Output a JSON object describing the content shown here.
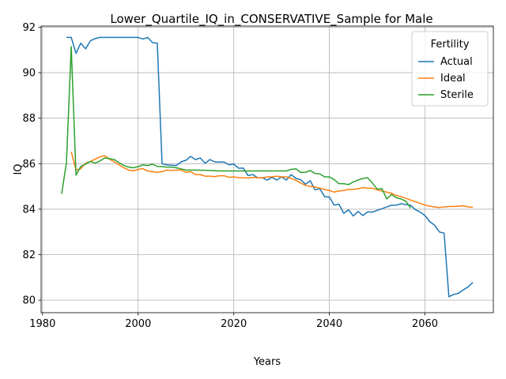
{
  "chart_data": {
    "type": "line",
    "title": "Lower_Quartile_IQ_in_CONSERVATIVE_Sample for Male",
    "xlabel": "Years",
    "ylabel": "IQ",
    "xlim": [
      1979.7,
      2074.3
    ],
    "ylim": [
      79.45,
      92.05
    ],
    "x_ticks": [
      1980,
      2000,
      2020,
      2040,
      2060
    ],
    "y_ticks": [
      80,
      82,
      84,
      86,
      88,
      90,
      92
    ],
    "grid": true,
    "legend": {
      "title": "Fertility",
      "placement": "top-right"
    },
    "series": [
      {
        "name": "Actual",
        "color": "#1f77b4",
        "points": [
          [
            1985,
            91.55
          ],
          [
            1986,
            91.55
          ],
          [
            1987,
            90.85
          ],
          [
            1988,
            91.3
          ],
          [
            1989,
            91.05
          ],
          [
            1990,
            91.4
          ],
          [
            1991,
            91.5
          ],
          [
            1992,
            91.55
          ],
          [
            1993,
            91.55
          ],
          [
            1994,
            91.55
          ],
          [
            1995,
            91.55
          ],
          [
            1996,
            91.55
          ],
          [
            1997,
            91.55
          ],
          [
            1998,
            91.55
          ],
          [
            1999,
            91.55
          ],
          [
            2000,
            91.55
          ],
          [
            2001,
            91.48
          ],
          [
            2002,
            91.55
          ],
          [
            2003,
            91.32
          ],
          [
            2004,
            91.3
          ],
          [
            2005,
            86.0
          ],
          [
            2006,
            85.95
          ],
          [
            2007,
            85.93
          ],
          [
            2008,
            85.92
          ],
          [
            2009,
            86.08
          ],
          [
            2010,
            86.15
          ],
          [
            2011,
            86.32
          ],
          [
            2012,
            86.18
          ],
          [
            2013,
            86.25
          ],
          [
            2014,
            86.02
          ],
          [
            2015,
            86.18
          ],
          [
            2016,
            86.08
          ],
          [
            2017,
            86.07
          ],
          [
            2018,
            86.07
          ],
          [
            2019,
            85.95
          ],
          [
            2020,
            85.98
          ],
          [
            2021,
            85.8
          ],
          [
            2022,
            85.8
          ],
          [
            2023,
            85.48
          ],
          [
            2024,
            85.52
          ],
          [
            2025,
            85.38
          ],
          [
            2026,
            85.38
          ],
          [
            2027,
            85.28
          ],
          [
            2028,
            85.4
          ],
          [
            2029,
            85.28
          ],
          [
            2030,
            85.42
          ],
          [
            2031,
            85.28
          ],
          [
            2032,
            85.52
          ],
          [
            2033,
            85.35
          ],
          [
            2034,
            85.3
          ],
          [
            2035,
            85.1
          ],
          [
            2036,
            85.25
          ],
          [
            2037,
            84.85
          ],
          [
            2038,
            84.9
          ],
          [
            2039,
            84.55
          ],
          [
            2040,
            84.53
          ],
          [
            2041,
            84.18
          ],
          [
            2042,
            84.22
          ],
          [
            2043,
            83.82
          ],
          [
            2044,
            83.97
          ],
          [
            2045,
            83.7
          ],
          [
            2046,
            83.9
          ],
          [
            2047,
            83.72
          ],
          [
            2048,
            83.88
          ],
          [
            2049,
            83.87
          ],
          [
            2050,
            83.95
          ],
          [
            2051,
            84.02
          ],
          [
            2052,
            84.1
          ],
          [
            2053,
            84.17
          ],
          [
            2054,
            84.18
          ],
          [
            2055,
            84.24
          ],
          [
            2056,
            84.2
          ],
          [
            2057,
            84.17
          ],
          [
            2058,
            83.98
          ],
          [
            2059,
            83.87
          ],
          [
            2060,
            83.72
          ],
          [
            2061,
            83.45
          ],
          [
            2062,
            83.3
          ],
          [
            2063,
            83.0
          ],
          [
            2064,
            82.95
          ],
          [
            2065,
            80.15
          ],
          [
            2066,
            80.25
          ],
          [
            2067,
            80.3
          ],
          [
            2068,
            80.45
          ],
          [
            2069,
            80.58
          ],
          [
            2070,
            80.78
          ]
        ]
      },
      {
        "name": "Ideal",
        "color": "#ff7f0e",
        "points": [
          [
            1986,
            86.52
          ],
          [
            1987,
            85.72
          ],
          [
            1988,
            85.78
          ],
          [
            1989,
            86.02
          ],
          [
            1990,
            86.1
          ],
          [
            1991,
            86.2
          ],
          [
            1992,
            86.3
          ],
          [
            1993,
            86.35
          ],
          [
            1994,
            86.2
          ],
          [
            1995,
            86.08
          ],
          [
            1996,
            85.95
          ],
          [
            1997,
            85.82
          ],
          [
            1998,
            85.72
          ],
          [
            1999,
            85.68
          ],
          [
            2000,
            85.75
          ],
          [
            2001,
            85.78
          ],
          [
            2002,
            85.68
          ],
          [
            2003,
            85.65
          ],
          [
            2004,
            85.62
          ],
          [
            2005,
            85.65
          ],
          [
            2006,
            85.72
          ],
          [
            2007,
            85.7
          ],
          [
            2008,
            85.72
          ],
          [
            2009,
            85.72
          ],
          [
            2010,
            85.62
          ],
          [
            2011,
            85.65
          ],
          [
            2012,
            85.52
          ],
          [
            2013,
            85.52
          ],
          [
            2014,
            85.45
          ],
          [
            2015,
            85.45
          ],
          [
            2016,
            85.43
          ],
          [
            2017,
            85.47
          ],
          [
            2018,
            85.47
          ],
          [
            2019,
            85.4
          ],
          [
            2020,
            85.42
          ],
          [
            2021,
            85.38
          ],
          [
            2022,
            85.38
          ],
          [
            2023,
            85.37
          ],
          [
            2024,
            85.4
          ],
          [
            2025,
            85.38
          ],
          [
            2026,
            85.38
          ],
          [
            2027,
            85.42
          ],
          [
            2028,
            85.42
          ],
          [
            2029,
            85.45
          ],
          [
            2030,
            85.42
          ],
          [
            2031,
            85.42
          ],
          [
            2032,
            85.35
          ],
          [
            2033,
            85.27
          ],
          [
            2034,
            85.15
          ],
          [
            2035,
            85.05
          ],
          [
            2036,
            85.0
          ],
          [
            2037,
            84.98
          ],
          [
            2038,
            84.92
          ],
          [
            2039,
            84.87
          ],
          [
            2040,
            84.82
          ],
          [
            2041,
            84.75
          ],
          [
            2042,
            84.8
          ],
          [
            2043,
            84.82
          ],
          [
            2044,
            84.87
          ],
          [
            2045,
            84.87
          ],
          [
            2046,
            84.9
          ],
          [
            2047,
            84.95
          ],
          [
            2048,
            84.92
          ],
          [
            2049,
            84.92
          ],
          [
            2050,
            84.85
          ],
          [
            2051,
            84.8
          ],
          [
            2052,
            84.75
          ],
          [
            2053,
            84.7
          ],
          [
            2054,
            84.6
          ],
          [
            2055,
            84.55
          ],
          [
            2056,
            84.48
          ],
          [
            2057,
            84.4
          ],
          [
            2058,
            84.33
          ],
          [
            2059,
            84.25
          ],
          [
            2060,
            84.18
          ],
          [
            2061,
            84.13
          ],
          [
            2062,
            84.1
          ],
          [
            2063,
            84.07
          ],
          [
            2064,
            84.1
          ],
          [
            2065,
            84.12
          ],
          [
            2066,
            84.12
          ],
          [
            2067,
            84.13
          ],
          [
            2068,
            84.15
          ],
          [
            2069,
            84.1
          ],
          [
            2070,
            84.08
          ]
        ]
      },
      {
        "name": "Sterile",
        "color": "#2ca02c",
        "points": [
          [
            1984,
            84.68
          ],
          [
            1985,
            86.05
          ],
          [
            1986,
            91.15
          ],
          [
            1987,
            85.5
          ],
          [
            1988,
            85.88
          ],
          [
            1989,
            85.98
          ],
          [
            1990,
            86.1
          ],
          [
            1991,
            86.02
          ],
          [
            1992,
            86.12
          ],
          [
            1993,
            86.25
          ],
          [
            1994,
            86.22
          ],
          [
            1995,
            86.18
          ],
          [
            1996,
            86.05
          ],
          [
            1997,
            85.92
          ],
          [
            1998,
            85.85
          ],
          [
            1999,
            85.82
          ],
          [
            2000,
            85.87
          ],
          [
            2001,
            85.95
          ],
          [
            2002,
            85.92
          ],
          [
            2003,
            85.98
          ],
          [
            2004,
            85.88
          ],
          [
            2005,
            85.87
          ],
          [
            2006,
            85.85
          ],
          [
            2007,
            85.85
          ],
          [
            2008,
            85.82
          ],
          [
            2009,
            85.77
          ],
          [
            2010,
            85.72
          ],
          [
            2011,
            85.72
          ],
          [
            2012,
            85.72
          ],
          [
            2013,
            85.71
          ],
          [
            2014,
            85.71
          ],
          [
            2015,
            85.7
          ],
          [
            2016,
            85.69
          ],
          [
            2017,
            85.68
          ],
          [
            2018,
            85.68
          ],
          [
            2019,
            85.68
          ],
          [
            2020,
            85.68
          ],
          [
            2021,
            85.68
          ],
          [
            2022,
            85.68
          ],
          [
            2023,
            85.68
          ],
          [
            2024,
            85.68
          ],
          [
            2025,
            85.68
          ],
          [
            2026,
            85.68
          ],
          [
            2027,
            85.68
          ],
          [
            2028,
            85.68
          ],
          [
            2029,
            85.68
          ],
          [
            2030,
            85.68
          ],
          [
            2031,
            85.68
          ],
          [
            2032,
            85.75
          ],
          [
            2033,
            85.77
          ],
          [
            2034,
            85.62
          ],
          [
            2035,
            85.62
          ],
          [
            2036,
            85.7
          ],
          [
            2037,
            85.57
          ],
          [
            2038,
            85.55
          ],
          [
            2039,
            85.42
          ],
          [
            2040,
            85.42
          ],
          [
            2041,
            85.3
          ],
          [
            2042,
            85.12
          ],
          [
            2043,
            85.12
          ],
          [
            2044,
            85.08
          ],
          [
            2045,
            85.2
          ],
          [
            2046,
            85.28
          ],
          [
            2047,
            85.35
          ],
          [
            2048,
            85.38
          ],
          [
            2049,
            85.15
          ],
          [
            2050,
            84.88
          ],
          [
            2051,
            84.9
          ],
          [
            2052,
            84.45
          ],
          [
            2053,
            84.65
          ],
          [
            2054,
            84.5
          ],
          [
            2055,
            84.45
          ],
          [
            2056,
            84.35
          ],
          [
            2057,
            84.05
          ]
        ]
      }
    ]
  }
}
